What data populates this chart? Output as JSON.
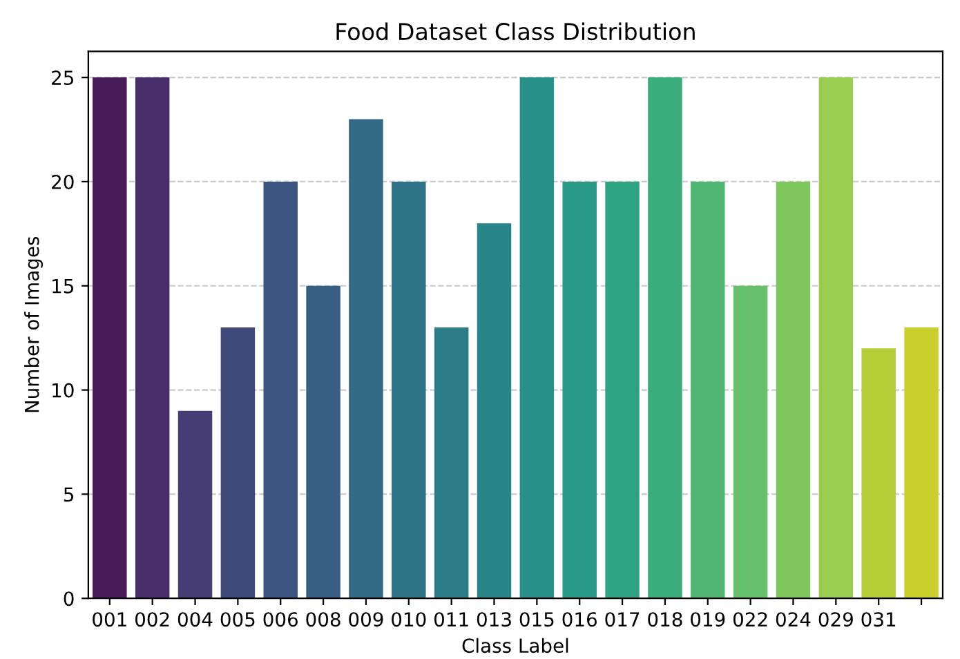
{
  "chart_data": {
    "type": "bar",
    "title": "Food Dataset Class Distribution",
    "xlabel": "Class Label",
    "ylabel": "Number of Images",
    "categories": [
      "001",
      "002",
      "004",
      "005",
      "006",
      "008",
      "009",
      "010",
      "011",
      "013",
      "015",
      "016",
      "017",
      "018",
      "019",
      "022",
      "024",
      "029",
      "031",
      null
    ],
    "values": [
      25,
      25,
      9,
      13,
      20,
      15,
      23,
      20,
      13,
      18,
      25,
      20,
      20,
      25,
      20,
      15,
      20,
      25,
      12,
      13
    ],
    "colors": [
      "#481b5a",
      "#472e6b",
      "#443c73",
      "#404a7a",
      "#3c5480",
      "#375f84",
      "#336a86",
      "#2f7387",
      "#2c7d88",
      "#298688",
      "#279088",
      "#289a85",
      "#2ea382",
      "#3bad7b",
      "#4fb773",
      "#66c06a",
      "#7ec75d",
      "#99cd4f",
      "#b4cc36",
      "#c9cf2a"
    ],
    "ylim": [
      0,
      26.25
    ],
    "yticks": [
      0,
      5,
      10,
      15,
      20,
      25
    ],
    "grid": "y"
  }
}
